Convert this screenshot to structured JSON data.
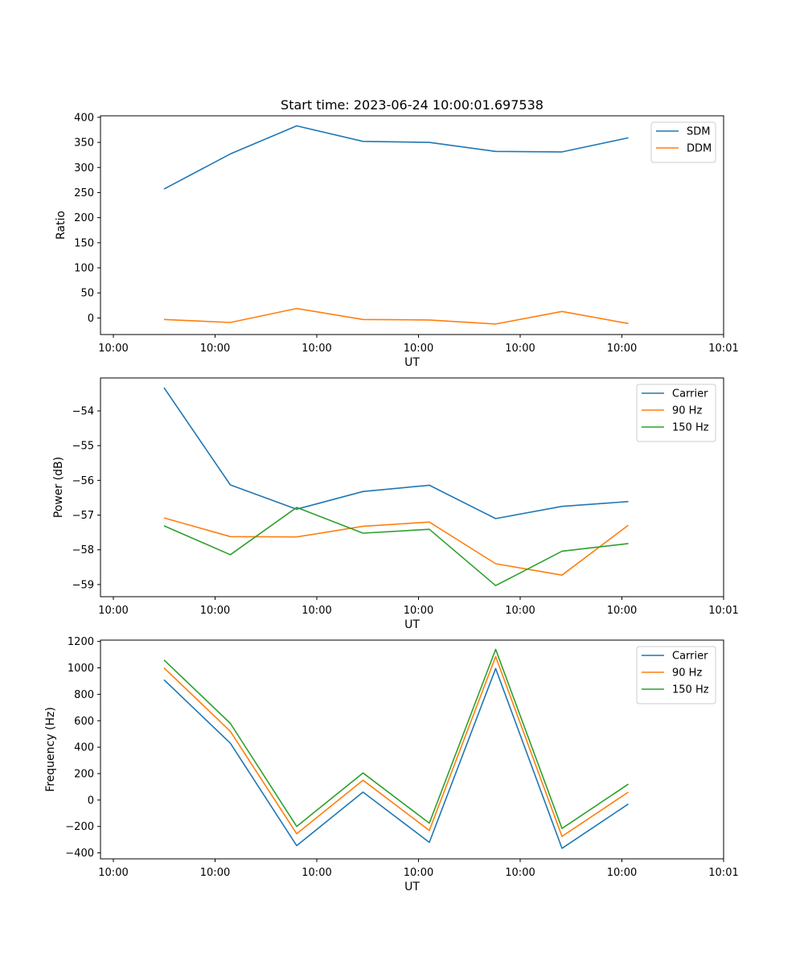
{
  "title": "Start time: 2023-06-24 10:00:01.697538",
  "chart_data": [
    {
      "type": "line",
      "xlabel": "UT",
      "ylabel": "Ratio",
      "x_tick_labels": [
        "10:00",
        "10:00",
        "10:00",
        "10:00",
        "10:00",
        "10:00",
        "10:01"
      ],
      "y_ticks": [
        0,
        50,
        100,
        150,
        200,
        250,
        300,
        350,
        400
      ],
      "ylim": [
        -33,
        403
      ],
      "legend_position": "top-right",
      "series": [
        {
          "name": "SDM",
          "color": "#1f77b4",
          "values": [
            257,
            327,
            383,
            352,
            350,
            332,
            331,
            359
          ]
        },
        {
          "name": "DDM",
          "color": "#ff7f0e",
          "values": [
            -3,
            -9,
            19,
            -3,
            -4,
            -12,
            13,
            -11
          ]
        }
      ]
    },
    {
      "type": "line",
      "xlabel": "UT",
      "ylabel": "Power (dB)",
      "x_tick_labels": [
        "10:00",
        "10:00",
        "10:00",
        "10:00",
        "10:00",
        "10:00",
        "10:01"
      ],
      "y_ticks": [
        -59,
        -58,
        -57,
        -56,
        -55,
        -54
      ],
      "ylim": [
        -59.35,
        -53.05
      ],
      "legend_position": "top-right",
      "series": [
        {
          "name": "Carrier",
          "color": "#1f77b4",
          "values": [
            -53.33,
            -56.13,
            -56.83,
            -56.32,
            -56.14,
            -57.1,
            -56.75,
            -56.61
          ]
        },
        {
          "name": "90 Hz",
          "color": "#ff7f0e",
          "values": [
            -57.08,
            -57.62,
            -57.63,
            -57.32,
            -57.2,
            -58.4,
            -58.73,
            -57.29
          ]
        },
        {
          "name": "150 Hz",
          "color": "#2ca02c",
          "values": [
            -57.31,
            -58.14,
            -56.78,
            -57.52,
            -57.41,
            -59.03,
            -58.04,
            -57.82
          ]
        }
      ]
    },
    {
      "type": "line",
      "xlabel": "UT",
      "ylabel": "Frequency (Hz)",
      "x_tick_labels": [
        "10:00",
        "10:00",
        "10:00",
        "10:00",
        "10:00",
        "10:00",
        "10:01"
      ],
      "y_ticks": [
        -400,
        -200,
        0,
        200,
        400,
        600,
        800,
        1000,
        1200
      ],
      "ylim": [
        -445,
        1210
      ],
      "legend_position": "top-right",
      "series": [
        {
          "name": "Carrier",
          "color": "#1f77b4",
          "values": [
            910,
            430,
            -345,
            60,
            -320,
            995,
            -365,
            -30
          ]
        },
        {
          "name": "90 Hz",
          "color": "#ff7f0e",
          "values": [
            1000,
            520,
            -255,
            150,
            -230,
            1085,
            -275,
            60
          ]
        },
        {
          "name": "150 Hz",
          "color": "#2ca02c",
          "values": [
            1060,
            580,
            -200,
            205,
            -175,
            1140,
            -215,
            120
          ]
        }
      ]
    }
  ]
}
